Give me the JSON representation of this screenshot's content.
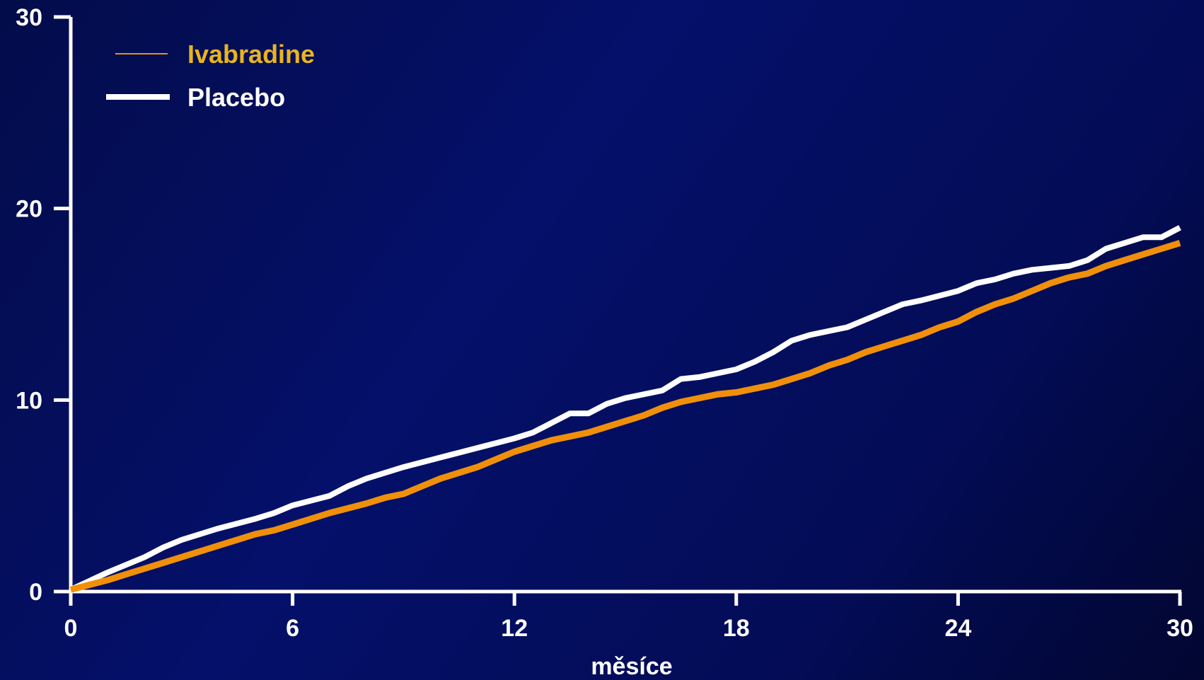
{
  "chart_data": {
    "type": "line",
    "title": "",
    "xlabel": "měsíce",
    "ylabel": "",
    "xlim": [
      0,
      30
    ],
    "ylim": [
      0,
      30
    ],
    "x_ticks": [
      "0",
      "6",
      "12",
      "18",
      "24",
      "30"
    ],
    "y_ticks": [
      "0",
      "10",
      "20",
      "30"
    ],
    "grid": false,
    "legend_position": "top-left",
    "series": [
      {
        "name": "Ivabradine",
        "color": "#f0900a",
        "legend_text_color": "#e8b420",
        "x": [
          0,
          1,
          1.5,
          2,
          2.5,
          3,
          3.5,
          4,
          4.5,
          5,
          5.5,
          6,
          7,
          8,
          8.5,
          9,
          9.5,
          10,
          10.5,
          11,
          11.5,
          12,
          12.5,
          13,
          13.5,
          14,
          14.5,
          15,
          15.5,
          16,
          16.5,
          17,
          17.5,
          18,
          18.5,
          19,
          19.5,
          20,
          20.5,
          21,
          21.5,
          22,
          22.5,
          23,
          23.5,
          24,
          24.5,
          25,
          25.5,
          26,
          26.5,
          27,
          27.5,
          28,
          28.5,
          29,
          29.5,
          30
        ],
        "y": [
          0.1,
          0.6,
          0.9,
          1.2,
          1.5,
          1.8,
          2.1,
          2.4,
          2.7,
          3.0,
          3.2,
          3.5,
          4.1,
          4.6,
          4.9,
          5.1,
          5.5,
          5.9,
          6.2,
          6.5,
          6.9,
          7.3,
          7.6,
          7.9,
          8.1,
          8.3,
          8.6,
          8.9,
          9.2,
          9.6,
          9.9,
          10.1,
          10.3,
          10.4,
          10.6,
          10.8,
          11.1,
          11.4,
          11.8,
          12.1,
          12.5,
          12.8,
          13.1,
          13.4,
          13.8,
          14.1,
          14.6,
          15.0,
          15.3,
          15.7,
          16.1,
          16.4,
          16.6,
          17.0,
          17.3,
          17.6,
          17.9,
          18.2
        ]
      },
      {
        "name": "Placebo",
        "color": "#ffffff",
        "legend_text_color": "#ffffff",
        "x": [
          0,
          1,
          2,
          2.5,
          3,
          4,
          5,
          5.5,
          6,
          7,
          7.5,
          8,
          9,
          10,
          11,
          12,
          12.5,
          13,
          13.5,
          14,
          14.5,
          15,
          16,
          16.5,
          17,
          18,
          18.5,
          19,
          19.5,
          20,
          21,
          21.5,
          22,
          22.5,
          23,
          24,
          24.5,
          25,
          25.5,
          26,
          26.5,
          27,
          27.5,
          28,
          28.5,
          29,
          29.5,
          30
        ],
        "y": [
          0.1,
          1.0,
          1.8,
          2.3,
          2.7,
          3.3,
          3.8,
          4.1,
          4.5,
          5.0,
          5.5,
          5.9,
          6.5,
          7.0,
          7.5,
          8.0,
          8.3,
          8.8,
          9.3,
          9.3,
          9.8,
          10.1,
          10.5,
          11.1,
          11.2,
          11.6,
          12.0,
          12.5,
          13.1,
          13.4,
          13.8,
          14.2,
          14.6,
          15.0,
          15.2,
          15.7,
          16.1,
          16.3,
          16.6,
          16.8,
          16.9,
          17.0,
          17.3,
          17.9,
          18.2,
          18.5,
          18.5,
          19.0
        ]
      }
    ]
  }
}
